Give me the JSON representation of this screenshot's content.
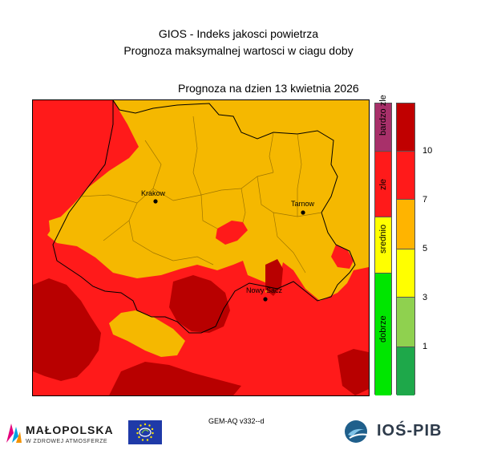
{
  "header": {
    "title_line1": "GIOS - Indeks jakosci powietrza",
    "title_line2": "Prognoza maksymalnej wartosci w ciagu doby",
    "date_line": "Prognoza na dzien  13 kwietnia 2026"
  },
  "map": {
    "cities": [
      "Krakow",
      "Tarnow",
      "Nowy Sacz"
    ]
  },
  "legend": {
    "categories": [
      {
        "label": "bardzo zle",
        "color": "#a8306a"
      },
      {
        "label": "zle",
        "color": "#ff1a1a"
      },
      {
        "label": "srednio",
        "color": "#ffff00"
      },
      {
        "label": "dobrze",
        "color": "#00e600"
      }
    ],
    "scale_colors": [
      "#c00000",
      "#ff1a1a",
      "#ffb400",
      "#ffff00",
      "#8fd14f",
      "#1ea84a"
    ],
    "scale_ticks": [
      "10",
      "7",
      "5",
      "3",
      "1"
    ]
  },
  "footer": {
    "model": "GEM-AQ v332--d",
    "logo_left_name": "MAŁOPOLSKA",
    "logo_left_sub": "W ZDROWEJ ATMOSFERZE",
    "logo_right_name": "IOŚ-PIB"
  }
}
